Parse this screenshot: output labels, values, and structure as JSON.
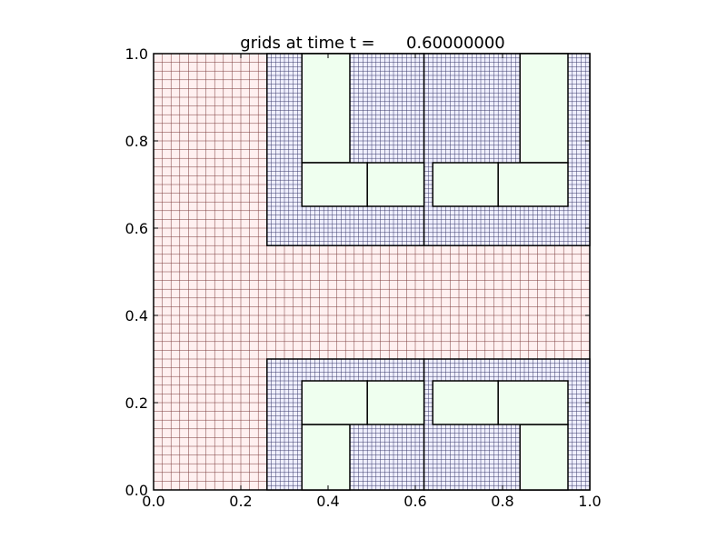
{
  "chart_data": {
    "type": "amr-grid",
    "title": "grids at time t =      0.60000000",
    "xlim": [
      0,
      1
    ],
    "ylim": [
      0,
      1
    ],
    "xticks": [
      {
        "value": 0,
        "label": "0.0"
      },
      0.2,
      0.4,
      0.6,
      0.8,
      {
        "value": 1,
        "label": "1.0"
      }
    ],
    "yticks": [
      {
        "value": 0,
        "label": "0.0"
      },
      0.2,
      0.4,
      0.6,
      0.8,
      {
        "value": 1,
        "label": "1.0"
      }
    ],
    "patches": [
      {
        "level": 1,
        "color": "#fff0f0",
        "line_color": "#7a3a3a",
        "x": [
          0,
          1
        ],
        "y": [
          0,
          1
        ],
        "dx": 0.02
      },
      {
        "level": 2,
        "color": "#f0f0ff",
        "line_color": "#3a3a6a",
        "x": [
          0.26,
          0.62
        ],
        "y": [
          0.56,
          1
        ],
        "dx": 0.01
      },
      {
        "level": 2,
        "color": "#f0f0ff",
        "line_color": "#3a3a6a",
        "x": [
          0.62,
          1
        ],
        "y": [
          0.56,
          1
        ],
        "dx": 0.01
      },
      {
        "level": 2,
        "color": "#f0f0ff",
        "line_color": "#3a3a6a",
        "x": [
          0.26,
          0.62
        ],
        "y": [
          0,
          0.3
        ],
        "dx": 0.01
      },
      {
        "level": 2,
        "color": "#f0f0ff",
        "line_color": "#3a3a6a",
        "x": [
          0.62,
          1
        ],
        "y": [
          0,
          0.3
        ],
        "dx": 0.01
      },
      {
        "level": 3,
        "color": "#efffef",
        "x": [
          0.34,
          0.45
        ],
        "y": [
          0.75,
          1
        ]
      },
      {
        "level": 3,
        "color": "#efffef",
        "x": [
          0.84,
          0.95
        ],
        "y": [
          0.75,
          1
        ]
      },
      {
        "level": 3,
        "color": "#efffef",
        "x": [
          0.34,
          0.49
        ],
        "y": [
          0.65,
          0.75
        ]
      },
      {
        "level": 3,
        "color": "#efffef",
        "x": [
          0.49,
          0.62
        ],
        "y": [
          0.65,
          0.75
        ]
      },
      {
        "level": 3,
        "color": "#efffef",
        "x": [
          0.64,
          0.79
        ],
        "y": [
          0.65,
          0.75
        ]
      },
      {
        "level": 3,
        "color": "#efffef",
        "x": [
          0.79,
          0.95
        ],
        "y": [
          0.65,
          0.75
        ]
      },
      {
        "level": 3,
        "color": "#efffef",
        "x": [
          0.34,
          0.45
        ],
        "y": [
          0,
          0.15
        ]
      },
      {
        "level": 3,
        "color": "#efffef",
        "x": [
          0.84,
          0.95
        ],
        "y": [
          0,
          0.15
        ]
      },
      {
        "level": 3,
        "color": "#efffef",
        "x": [
          0.34,
          0.49
        ],
        "y": [
          0.15,
          0.25
        ]
      },
      {
        "level": 3,
        "color": "#efffef",
        "x": [
          0.49,
          0.62
        ],
        "y": [
          0.15,
          0.25
        ]
      },
      {
        "level": 3,
        "color": "#efffef",
        "x": [
          0.64,
          0.79
        ],
        "y": [
          0.15,
          0.25
        ]
      },
      {
        "level": 3,
        "color": "#efffef",
        "x": [
          0.79,
          0.95
        ],
        "y": [
          0.15,
          0.25
        ]
      }
    ]
  }
}
